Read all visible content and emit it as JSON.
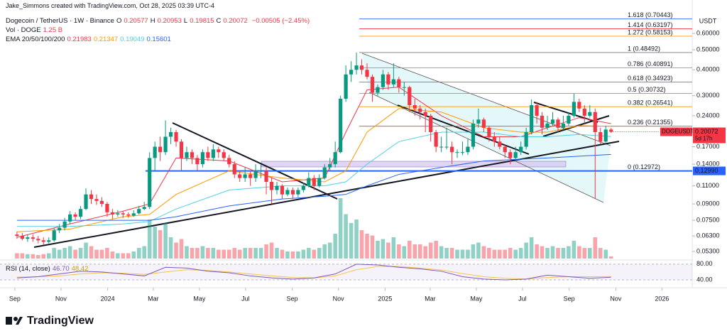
{
  "header": {
    "credit": "Jake_Simmons created with TradingView.com, Oct 28, 2025 03:39 UTC-4",
    "symbol": "Dogecoin / TetherUS · 1W · Binance",
    "ohlc_legend": [
      {
        "key": "O",
        "value": "0.20577"
      },
      {
        "key": "H",
        "value": "0.20953"
      },
      {
        "key": "L",
        "value": "0.19815"
      },
      {
        "key": "C",
        "value": "0.20072"
      }
    ],
    "change": "−0.00505 (−2.45%)",
    "vol_title": "Vol · DOGE",
    "ema_title": "EMA 20/50/100/200"
  },
  "footer": {
    "brand": "TradingView"
  },
  "chart_data": {
    "type": "candlestick",
    "currency": "USDT",
    "log_scale": true,
    "x": [
      0,
      1,
      2,
      3,
      4,
      5,
      6,
      7,
      8,
      9,
      10,
      11,
      12,
      13,
      14,
      15,
      16,
      17,
      18,
      19,
      20,
      21,
      22,
      23,
      24,
      25,
      26,
      27,
      28,
      29,
      30,
      31,
      32,
      33,
      34,
      35,
      36,
      37,
      38,
      39,
      40,
      41,
      42,
      43,
      44,
      45,
      46,
      47,
      48,
      49,
      50,
      51,
      52,
      53,
      54,
      55,
      56,
      57,
      58,
      59,
      60,
      61,
      62,
      63,
      64,
      65,
      66,
      67,
      68,
      69,
      70,
      71,
      72,
      73,
      74,
      75,
      76,
      77,
      78,
      79,
      80,
      81,
      82,
      83,
      84,
      85,
      86,
      87,
      88,
      89,
      90,
      91,
      92,
      93,
      94,
      95,
      96,
      97,
      98,
      99,
      100,
      101,
      102,
      103,
      104,
      105,
      106,
      107,
      108,
      109,
      110,
      111,
      112
    ],
    "xlim": [
      -3.2,
      127.3
    ],
    "xticks": [
      {
        "value": -0.4,
        "label": "Sep"
      },
      {
        "value": 8.3,
        "label": "Nov"
      },
      {
        "value": 17.1,
        "label": "2024"
      },
      {
        "value": 25.7,
        "label": "Mar"
      },
      {
        "value": 34.4,
        "label": "May"
      },
      {
        "value": 43.1,
        "label": "Jul"
      },
      {
        "value": 51.9,
        "label": "Sep"
      },
      {
        "value": 60.6,
        "label": "Nov"
      },
      {
        "value": 69.4,
        "label": "2025"
      },
      {
        "value": 77.9,
        "label": "Mar"
      },
      {
        "value": 86.6,
        "label": "May"
      },
      {
        "value": 95.3,
        "label": "Jul"
      },
      {
        "value": 104.1,
        "label": "Sep"
      },
      {
        "value": 112.9,
        "label": "Nov"
      },
      {
        "value": 121.6,
        "label": "2026"
      }
    ],
    "ylim": [
      0.0482,
      0.87
    ],
    "yticks": [
      {
        "value": 0.6,
        "label": "0.60000"
      },
      {
        "value": 0.5,
        "label": "0.50000"
      },
      {
        "value": 0.4,
        "label": "0.40000"
      },
      {
        "value": 0.3,
        "label": "0.30000"
      },
      {
        "value": 0.24,
        "label": "0.24000"
      },
      {
        "value": 0.17,
        "label": "0.17000"
      },
      {
        "value": 0.14,
        "label": "0.14000"
      },
      {
        "value": 0.11,
        "label": "0.11000"
      },
      {
        "value": 0.09,
        "label": "0.09000"
      },
      {
        "value": 0.075,
        "label": "0.07500"
      },
      {
        "value": 0.063,
        "label": "0.06300"
      },
      {
        "value": 0.053,
        "label": "0.05300"
      }
    ],
    "up_color": "#089981",
    "down_color": "#f23645",
    "ohlc": [
      [
        0.064,
        0.066,
        0.061,
        0.063
      ],
      [
        0.063,
        0.065,
        0.06,
        0.061
      ],
      [
        0.061,
        0.064,
        0.059,
        0.062
      ],
      [
        0.062,
        0.064,
        0.059,
        0.061
      ],
      [
        0.061,
        0.063,
        0.058,
        0.06
      ],
      [
        0.06,
        0.062,
        0.057,
        0.059
      ],
      [
        0.059,
        0.062,
        0.058,
        0.06
      ],
      [
        0.06,
        0.069,
        0.059,
        0.067
      ],
      [
        0.067,
        0.072,
        0.065,
        0.069
      ],
      [
        0.069,
        0.077,
        0.067,
        0.074
      ],
      [
        0.074,
        0.083,
        0.072,
        0.08
      ],
      [
        0.08,
        0.082,
        0.075,
        0.078
      ],
      [
        0.078,
        0.088,
        0.076,
        0.085
      ],
      [
        0.085,
        0.107,
        0.084,
        0.1
      ],
      [
        0.1,
        0.105,
        0.09,
        0.095
      ],
      [
        0.095,
        0.1,
        0.089,
        0.093
      ],
      [
        0.093,
        0.097,
        0.087,
        0.09
      ],
      [
        0.09,
        0.092,
        0.078,
        0.082
      ],
      [
        0.082,
        0.085,
        0.076,
        0.08
      ],
      [
        0.08,
        0.084,
        0.078,
        0.081
      ],
      [
        0.081,
        0.083,
        0.077,
        0.08
      ],
      [
        0.08,
        0.082,
        0.077,
        0.079
      ],
      [
        0.079,
        0.084,
        0.078,
        0.081
      ],
      [
        0.081,
        0.088,
        0.08,
        0.085
      ],
      [
        0.085,
        0.092,
        0.084,
        0.087
      ],
      [
        0.087,
        0.16,
        0.085,
        0.15
      ],
      [
        0.15,
        0.18,
        0.13,
        0.17
      ],
      [
        0.17,
        0.19,
        0.145,
        0.16
      ],
      [
        0.16,
        0.228,
        0.155,
        0.19
      ],
      [
        0.19,
        0.21,
        0.175,
        0.2
      ],
      [
        0.2,
        0.205,
        0.17,
        0.18
      ],
      [
        0.18,
        0.185,
        0.13,
        0.15
      ],
      [
        0.15,
        0.17,
        0.145,
        0.16
      ],
      [
        0.16,
        0.165,
        0.14,
        0.15
      ],
      [
        0.15,
        0.155,
        0.13,
        0.14
      ],
      [
        0.14,
        0.165,
        0.135,
        0.16
      ],
      [
        0.16,
        0.17,
        0.145,
        0.15
      ],
      [
        0.15,
        0.175,
        0.145,
        0.165
      ],
      [
        0.165,
        0.17,
        0.15,
        0.16
      ],
      [
        0.16,
        0.165,
        0.145,
        0.15
      ],
      [
        0.15,
        0.155,
        0.135,
        0.14
      ],
      [
        0.14,
        0.145,
        0.12,
        0.125
      ],
      [
        0.125,
        0.13,
        0.115,
        0.12
      ],
      [
        0.12,
        0.135,
        0.115,
        0.125
      ],
      [
        0.125,
        0.13,
        0.11,
        0.12
      ],
      [
        0.12,
        0.14,
        0.115,
        0.13
      ],
      [
        0.13,
        0.14,
        0.12,
        0.13
      ],
      [
        0.13,
        0.135,
        0.1,
        0.115
      ],
      [
        0.115,
        0.12,
        0.09,
        0.105
      ],
      [
        0.105,
        0.115,
        0.1,
        0.11
      ],
      [
        0.11,
        0.112,
        0.095,
        0.1
      ],
      [
        0.1,
        0.108,
        0.098,
        0.105
      ],
      [
        0.105,
        0.108,
        0.095,
        0.1
      ],
      [
        0.1,
        0.108,
        0.097,
        0.105
      ],
      [
        0.105,
        0.114,
        0.102,
        0.11
      ],
      [
        0.11,
        0.128,
        0.108,
        0.12
      ],
      [
        0.12,
        0.124,
        0.105,
        0.11
      ],
      [
        0.11,
        0.125,
        0.108,
        0.12
      ],
      [
        0.12,
        0.14,
        0.118,
        0.135
      ],
      [
        0.135,
        0.15,
        0.13,
        0.14
      ],
      [
        0.14,
        0.18,
        0.135,
        0.16
      ],
      [
        0.16,
        0.3,
        0.158,
        0.29
      ],
      [
        0.29,
        0.42,
        0.28,
        0.38
      ],
      [
        0.38,
        0.44,
        0.35,
        0.4
      ],
      [
        0.4,
        0.485,
        0.38,
        0.42
      ],
      [
        0.42,
        0.45,
        0.38,
        0.4
      ],
      [
        0.4,
        0.43,
        0.36,
        0.37
      ],
      [
        0.37,
        0.38,
        0.28,
        0.31
      ],
      [
        0.31,
        0.34,
        0.3,
        0.33
      ],
      [
        0.33,
        0.4,
        0.32,
        0.38
      ],
      [
        0.38,
        0.39,
        0.32,
        0.34
      ],
      [
        0.34,
        0.43,
        0.33,
        0.36
      ],
      [
        0.36,
        0.37,
        0.31,
        0.33
      ],
      [
        0.33,
        0.35,
        0.3,
        0.33
      ],
      [
        0.33,
        0.335,
        0.25,
        0.27
      ],
      [
        0.27,
        0.29,
        0.24,
        0.26
      ],
      [
        0.26,
        0.27,
        0.23,
        0.25
      ],
      [
        0.25,
        0.26,
        0.2,
        0.24
      ],
      [
        0.24,
        0.245,
        0.18,
        0.2
      ],
      [
        0.2,
        0.205,
        0.16,
        0.17
      ],
      [
        0.17,
        0.19,
        0.16,
        0.17
      ],
      [
        0.17,
        0.21,
        0.165,
        0.17
      ],
      [
        0.17,
        0.18,
        0.14,
        0.16
      ],
      [
        0.16,
        0.165,
        0.15,
        0.16
      ],
      [
        0.16,
        0.18,
        0.155,
        0.16
      ],
      [
        0.16,
        0.185,
        0.155,
        0.17
      ],
      [
        0.17,
        0.23,
        0.165,
        0.22
      ],
      [
        0.22,
        0.26,
        0.21,
        0.23
      ],
      [
        0.23,
        0.235,
        0.2,
        0.21
      ],
      [
        0.21,
        0.215,
        0.18,
        0.19
      ],
      [
        0.19,
        0.2,
        0.17,
        0.18
      ],
      [
        0.18,
        0.19,
        0.165,
        0.17
      ],
      [
        0.17,
        0.175,
        0.15,
        0.16
      ],
      [
        0.16,
        0.165,
        0.14,
        0.15
      ],
      [
        0.15,
        0.17,
        0.145,
        0.16
      ],
      [
        0.16,
        0.18,
        0.155,
        0.17
      ],
      [
        0.17,
        0.21,
        0.165,
        0.2
      ],
      [
        0.2,
        0.288,
        0.195,
        0.27
      ],
      [
        0.27,
        0.28,
        0.22,
        0.24
      ],
      [
        0.24,
        0.25,
        0.195,
        0.21
      ],
      [
        0.21,
        0.24,
        0.205,
        0.22
      ],
      [
        0.22,
        0.25,
        0.215,
        0.23
      ],
      [
        0.23,
        0.235,
        0.2,
        0.21
      ],
      [
        0.21,
        0.24,
        0.205,
        0.22
      ],
      [
        0.22,
        0.25,
        0.215,
        0.24
      ],
      [
        0.24,
        0.307,
        0.235,
        0.28
      ],
      [
        0.28,
        0.29,
        0.25,
        0.26
      ],
      [
        0.26,
        0.27,
        0.22,
        0.24
      ],
      [
        0.24,
        0.27,
        0.235,
        0.25
      ],
      [
        0.25,
        0.26,
        0.095,
        0.2
      ],
      [
        0.2,
        0.21,
        0.175,
        0.18
      ],
      [
        0.18,
        0.215,
        0.178,
        0.20577
      ],
      [
        0.20577,
        0.20953,
        0.19815,
        0.20072
      ]
    ],
    "volume": [
      3,
      3,
      2.5,
      2.5,
      2,
      2.5,
      3,
      6,
      5,
      6,
      7,
      5,
      6,
      9,
      7,
      5,
      5,
      6,
      4,
      3,
      3,
      3,
      4,
      6,
      7,
      22,
      18,
      16,
      20,
      12,
      9,
      11,
      7,
      6,
      6,
      7,
      6,
      6,
      5,
      5,
      5,
      6,
      5,
      6,
      6,
      6,
      6,
      8,
      9,
      6,
      5,
      4,
      4,
      4,
      5,
      6,
      5,
      6,
      8,
      9,
      14,
      34,
      25,
      20,
      22,
      16,
      14,
      13,
      10,
      11,
      9,
      12,
      8,
      7,
      10,
      8,
      8,
      7,
      9,
      10,
      7,
      6,
      6,
      5,
      5,
      5,
      8,
      9,
      7,
      6,
      5,
      5,
      5,
      6,
      5,
      6,
      9,
      12,
      8,
      7,
      6,
      7,
      6,
      6,
      7,
      10,
      7,
      6,
      6,
      12,
      6,
      5,
      1.25
    ],
    "volume_lim": [
      0,
      40
    ],
    "volume_label": "1.25 B",
    "ema": [
      {
        "color": "#f23645",
        "x": [
          0,
          10,
          20,
          25,
          30,
          40,
          50,
          58,
          62,
          66,
          72,
          80,
          88,
          95,
          100,
          106,
          112
        ],
        "values": [
          0.062,
          0.072,
          0.083,
          0.09,
          0.15,
          0.145,
          0.115,
          0.12,
          0.2,
          0.32,
          0.33,
          0.24,
          0.19,
          0.19,
          0.21,
          0.235,
          0.21983
        ]
      },
      {
        "color": "#ff9800",
        "x": [
          0,
          10,
          20,
          25,
          30,
          40,
          50,
          58,
          62,
          66,
          72,
          80,
          88,
          95,
          100,
          106,
          112
        ],
        "values": [
          0.066,
          0.068,
          0.078,
          0.08,
          0.1,
          0.13,
          0.12,
          0.115,
          0.13,
          0.2,
          0.26,
          0.25,
          0.21,
          0.2,
          0.2,
          0.215,
          0.21347
        ]
      },
      {
        "color": "#4dd0e1",
        "x": [
          0,
          10,
          20,
          25,
          30,
          40,
          50,
          58,
          62,
          66,
          72,
          80,
          88,
          95,
          100,
          106,
          112
        ],
        "values": [
          0.07,
          0.07,
          0.072,
          0.074,
          0.085,
          0.105,
          0.11,
          0.11,
          0.115,
          0.14,
          0.18,
          0.2,
          0.2,
          0.19,
          0.19,
          0.195,
          0.19049
        ]
      },
      {
        "color": "#2962ff",
        "x": [
          0,
          10,
          20,
          25,
          30,
          40,
          50,
          58,
          62,
          66,
          72,
          80,
          88,
          95,
          100,
          106,
          112
        ],
        "values": [
          0.075,
          0.075,
          0.075,
          0.075,
          0.078,
          0.088,
          0.095,
          0.098,
          0.1,
          0.11,
          0.125,
          0.135,
          0.145,
          0.148,
          0.15,
          0.153,
          0.15601
        ]
      }
    ],
    "fib": [
      {
        "label": "1.618 (0.70443)",
        "price": 0.70443,
        "color": "#2962ff"
      },
      {
        "label": "1.414 (0.63197)",
        "price": 0.63197,
        "color": "#f23645"
      },
      {
        "label": "1.272 (0.58153)",
        "price": 0.58153,
        "color": "#ff9800"
      },
      {
        "label": "1 (0.48492)",
        "price": 0.48492,
        "color": "#787b86"
      },
      {
        "label": "0.786 (0.40891)",
        "price": 0.40891,
        "color": "#00bcd4"
      },
      {
        "label": "0.618 (0.34923)",
        "price": 0.34923,
        "color": "#089981"
      },
      {
        "label": "0.5 (0.30732)",
        "price": 0.30732,
        "color": "#4caf50"
      },
      {
        "label": "0.382 (0.26541)",
        "price": 0.26541,
        "color": "#ff9800"
      },
      {
        "label": "0.236 (0.21355)",
        "price": 0.21355,
        "color": "#f23645"
      },
      {
        "label": "0 (0.12972)",
        "price": 0.12972,
        "color": "#2962ff"
      }
    ],
    "hline": {
      "value": 0.1299,
      "label": "0.12990",
      "color": "#2962ff"
    },
    "last_tag": {
      "symbol": "DOGEUSDT",
      "countdown": "5d 17h"
    },
    "rsi": {
      "title": "RSI (14, close)",
      "legend_value": "46.70",
      "ma_legend_value": "48.42",
      "ylim": [
        20,
        87
      ],
      "yticks": [
        {
          "value": 80,
          "label": "80.00"
        },
        {
          "value": 40,
          "label": "40.00"
        }
      ],
      "color": "#7e57c2",
      "ma_color": "#f7c548",
      "x": [
        0,
        4,
        8,
        12,
        16,
        20,
        24,
        28,
        32,
        36,
        40,
        44,
        48,
        52,
        56,
        60,
        64,
        68,
        72,
        76,
        80,
        84,
        88,
        92,
        96,
        100,
        104,
        108,
        112
      ],
      "values": [
        45,
        48,
        55,
        62,
        60,
        55,
        50,
        72,
        70,
        62,
        58,
        50,
        45,
        42,
        45,
        55,
        80,
        78,
        72,
        68,
        62,
        48,
        42,
        40,
        42,
        52,
        48,
        44,
        46.7
      ],
      "ma_values": [
        47,
        48,
        50,
        55,
        58,
        57,
        54,
        60,
        66,
        64,
        60,
        55,
        50,
        46,
        45,
        50,
        66,
        74,
        74,
        70,
        65,
        56,
        48,
        44,
        42,
        46,
        48,
        48,
        48.42
      ]
    }
  }
}
